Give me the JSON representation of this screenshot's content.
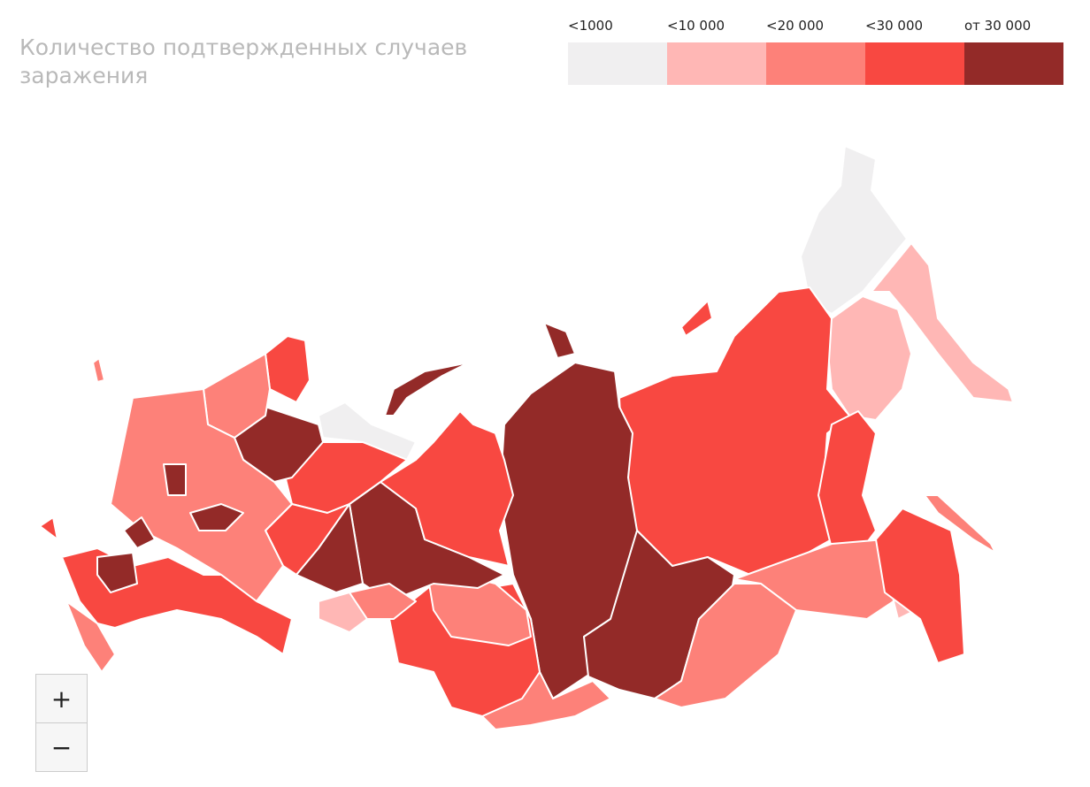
{
  "title": "Количество подтвержденных случаев заражения",
  "legend": {
    "items": [
      {
        "label": "<1000",
        "color": "#f0eff0"
      },
      {
        "label": "<10 000",
        "color": "#ffb7b5"
      },
      {
        "label": "<20 000",
        "color": "#fd8179"
      },
      {
        "label": "<30 000",
        "color": "#f84841"
      },
      {
        "label": "от 30 000",
        "color": "#932a28"
      }
    ]
  },
  "zoom": {
    "in": "+",
    "out": "−"
  }
}
